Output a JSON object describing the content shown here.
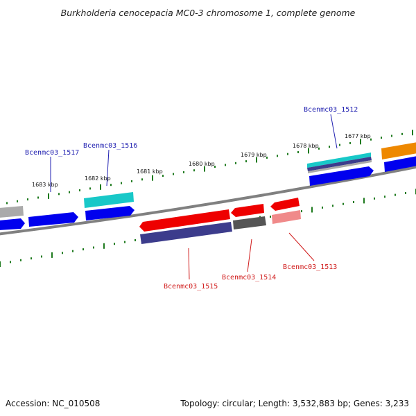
{
  "title": "Burkholderia cenocepacia MC0-3 chromosome 1, complete genome",
  "footer": {
    "accession": "Accession: NC_010508",
    "summary": "Topology: circular; Length: 3,532,883 bp; Genes: 3,233"
  },
  "colors": {
    "backbone": "#808080",
    "tick": "#1e7a1e",
    "plus_label": "#1f1fb0",
    "minus_label": "#d01a1a",
    "blue": "#0000ee",
    "cyan": "#18c8c8",
    "gray": "#aaaaaa",
    "navy": "#3c3c8c",
    "red": "#ee0000",
    "darkgray": "#555555",
    "pink": "#f08a8a",
    "orange": "#ee8800",
    "label_line_plus": "#1f1fb0",
    "label_line_minus": "#d01a1a"
  },
  "tick_labels": [
    "1683 kbp",
    "1682 kbp",
    "1681 kbp",
    "1680 kbp",
    "1679 kbp",
    "1678 kbp",
    "1677 kbp"
  ],
  "gene_labels": {
    "plus": [
      "Bcenmc03_1517",
      "Bcenmc03_1516",
      "Bcenmc03_1512"
    ],
    "minus": [
      "Bcenmc03_1515",
      "Bcenmc03_1514",
      "Bcenmc03_1513"
    ]
  }
}
